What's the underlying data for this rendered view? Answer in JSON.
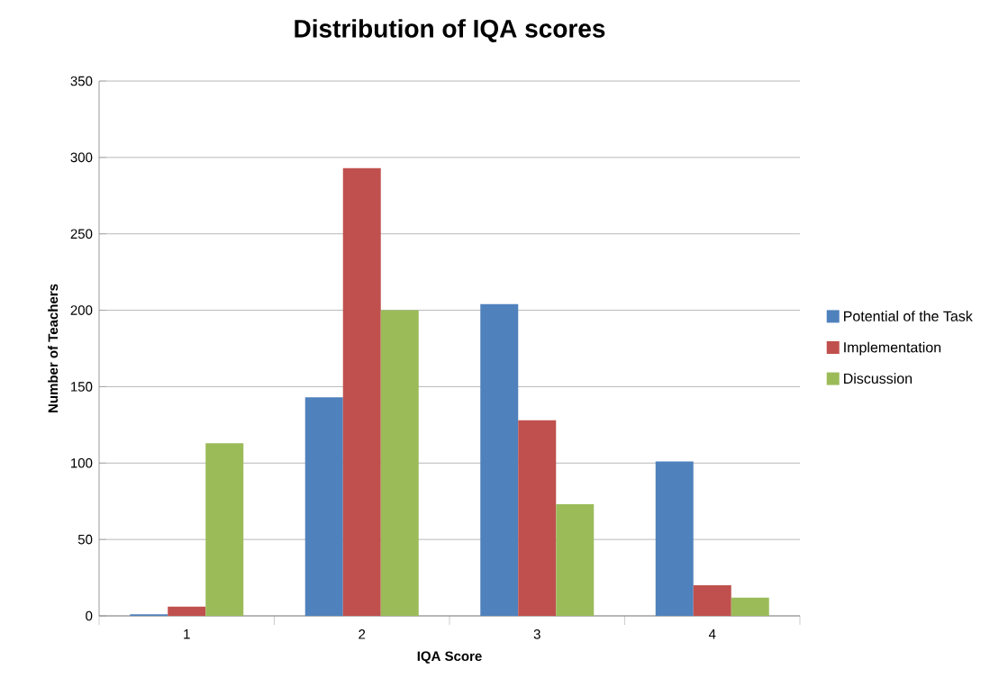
{
  "chart_data": {
    "type": "bar",
    "title": "Distribution of IQA scores",
    "xlabel": "IQA Score",
    "ylabel": "Number of Teachers",
    "categories": [
      "1",
      "2",
      "3",
      "4"
    ],
    "series": [
      {
        "name": "Potential of the Task",
        "color": "#4f81bd",
        "values": [
          1,
          143,
          204,
          101
        ]
      },
      {
        "name": "Implementation",
        "color": "#c0504d",
        "values": [
          6,
          293,
          128,
          20
        ]
      },
      {
        "name": "Discussion",
        "color": "#9bbb59",
        "values": [
          113,
          200,
          73,
          12
        ]
      }
    ],
    "ylim": [
      0,
      350
    ],
    "yticks": [
      0,
      50,
      100,
      150,
      200,
      250,
      300,
      350
    ],
    "grid": "y",
    "legend": "right"
  }
}
